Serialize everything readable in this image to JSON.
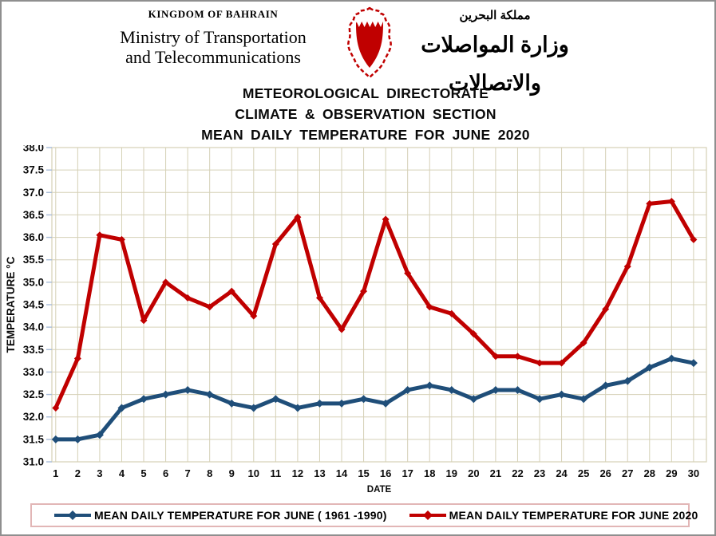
{
  "header": {
    "kingdom": "KINGDOM OF BAHRAIN",
    "ministry_line1": "Ministry of Transportation",
    "ministry_line2": "and Telecommunications",
    "arabic_kingdom": "مملكة البحرين",
    "arabic_ministry": "وزارة المواصلات والاتصالات",
    "emblem": "bahrain-coat-of-arms"
  },
  "title": {
    "line1": "METEOROLOGICAL DIRECTORATE",
    "line2": "CLIMATE & OBSERVATION SECTION",
    "line3": "MEAN DAILY TEMPERATURE FOR JUNE 2020"
  },
  "chart_data": {
    "type": "line",
    "categories": [
      1,
      2,
      3,
      4,
      5,
      6,
      7,
      8,
      9,
      10,
      11,
      12,
      13,
      14,
      15,
      16,
      17,
      18,
      19,
      20,
      21,
      22,
      23,
      24,
      25,
      26,
      27,
      28,
      29,
      30
    ],
    "xlabel": "DATE",
    "ylabel": "TEMPERATURE °C",
    "ylim": [
      31.0,
      38.0
    ],
    "ytick_step": 0.5,
    "grid": true,
    "legend_position": "bottom",
    "series": [
      {
        "name": "MEAN DAILY TEMPERATURE FOR JUNE ( 1961 -1990)",
        "color": "#1f4e79",
        "values": [
          31.5,
          31.5,
          31.6,
          32.2,
          32.4,
          32.5,
          32.6,
          32.5,
          32.3,
          32.2,
          32.4,
          32.2,
          32.3,
          32.3,
          32.4,
          32.3,
          32.6,
          32.7,
          32.6,
          32.4,
          32.6,
          32.6,
          32.4,
          32.5,
          32.4,
          32.7,
          32.8,
          33.1,
          33.3,
          33.2
        ]
      },
      {
        "name": "MEAN DAILY TEMPERATURE FOR JUNE 2020",
        "color": "#c00000",
        "values": [
          32.2,
          33.3,
          36.05,
          35.95,
          34.15,
          35.0,
          34.65,
          34.45,
          34.8,
          34.25,
          35.85,
          36.45,
          34.65,
          33.95,
          34.8,
          36.4,
          35.2,
          34.45,
          34.3,
          33.85,
          33.35,
          33.35,
          33.2,
          33.2,
          33.65,
          34.4,
          35.35,
          36.75,
          36.8,
          35.95
        ]
      }
    ],
    "colors": {
      "gridline": "#d5d0b6",
      "plot_border": "#d5d0b6",
      "tick_mark": "#a8bcd8",
      "axis_text": "#0a0a0a",
      "legend_border": "#e2b6b6"
    }
  }
}
